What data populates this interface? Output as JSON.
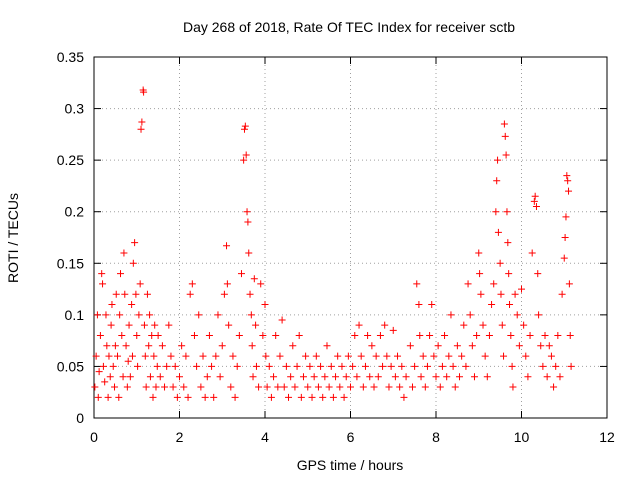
{
  "chart_data": {
    "type": "scatter",
    "title": "Day 268 of 2018, Rate Of TEC Index for receiver sctb",
    "xlabel": "GPS time / hours",
    "ylabel": "ROTI / TECUs",
    "xlim": [
      0,
      12
    ],
    "ylim": [
      0,
      0.35
    ],
    "xticks": [
      0,
      2,
      4,
      6,
      8,
      10,
      12
    ],
    "xtick_labels": [
      "0",
      "2",
      "4",
      "6",
      "8",
      "10",
      "12"
    ],
    "yticks": [
      0,
      0.05,
      0.1,
      0.15,
      0.2,
      0.25,
      0.3,
      0.35
    ],
    "ytick_labels": [
      "0",
      "0.05",
      "0.1",
      "0.15",
      "0.2",
      "0.25",
      "0.3",
      "0.35"
    ],
    "grid": true,
    "marker": "+",
    "color": "#ff0000",
    "series": [
      {
        "name": "ROTI",
        "points": [
          [
            0.02,
            0.03
          ],
          [
            0.05,
            0.06
          ],
          [
            0.08,
            0.1
          ],
          [
            0.1,
            0.02
          ],
          [
            0.12,
            0.045
          ],
          [
            0.15,
            0.08
          ],
          [
            0.18,
            0.14
          ],
          [
            0.2,
            0.13
          ],
          [
            0.22,
            0.05
          ],
          [
            0.25,
            0.035
          ],
          [
            0.28,
            0.1
          ],
          [
            0.3,
            0.07
          ],
          [
            0.33,
            0.02
          ],
          [
            0.35,
            0.06
          ],
          [
            0.38,
            0.04
          ],
          [
            0.4,
            0.09
          ],
          [
            0.42,
            0.11
          ],
          [
            0.45,
            0.05
          ],
          [
            0.48,
            0.03
          ],
          [
            0.5,
            0.07
          ],
          [
            0.52,
            0.12
          ],
          [
            0.55,
            0.06
          ],
          [
            0.58,
            0.02
          ],
          [
            0.6,
            0.1
          ],
          [
            0.62,
            0.14
          ],
          [
            0.65,
            0.08
          ],
          [
            0.68,
            0.04
          ],
          [
            0.7,
            0.16
          ],
          [
            0.72,
            0.12
          ],
          [
            0.75,
            0.07
          ],
          [
            0.78,
            0.03
          ],
          [
            0.8,
            0.055
          ],
          [
            0.82,
            0.09
          ],
          [
            0.85,
            0.04
          ],
          [
            0.88,
            0.11
          ],
          [
            0.9,
            0.06
          ],
          [
            0.92,
            0.15
          ],
          [
            0.95,
            0.17
          ],
          [
            0.98,
            0.12
          ],
          [
            1.0,
            0.08
          ],
          [
            1.02,
            0.05
          ],
          [
            1.05,
            0.1
          ],
          [
            1.08,
            0.13
          ],
          [
            1.1,
            0.28
          ],
          [
            1.12,
            0.287
          ],
          [
            1.15,
            0.318
          ],
          [
            1.16,
            0.316
          ],
          [
            1.18,
            0.09
          ],
          [
            1.2,
            0.06
          ],
          [
            1.22,
            0.03
          ],
          [
            1.25,
            0.12
          ],
          [
            1.28,
            0.07
          ],
          [
            1.3,
            0.1
          ],
          [
            1.32,
            0.04
          ],
          [
            1.35,
            0.08
          ],
          [
            1.38,
            0.02
          ],
          [
            1.4,
            0.06
          ],
          [
            1.42,
            0.09
          ],
          [
            1.45,
            0.03
          ],
          [
            1.48,
            0.05
          ],
          [
            1.5,
            0.08
          ],
          [
            1.55,
            0.04
          ],
          [
            1.6,
            0.07
          ],
          [
            1.65,
            0.03
          ],
          [
            1.7,
            0.05
          ],
          [
            1.75,
            0.09
          ],
          [
            1.8,
            0.06
          ],
          [
            1.85,
            0.03
          ],
          [
            1.9,
            0.05
          ],
          [
            1.95,
            0.02
          ],
          [
            2.0,
            0.04
          ],
          [
            2.05,
            0.07
          ],
          [
            2.1,
            0.03
          ],
          [
            2.15,
            0.06
          ],
          [
            2.2,
            0.02
          ],
          [
            2.25,
            0.12
          ],
          [
            2.3,
            0.13
          ],
          [
            2.35,
            0.08
          ],
          [
            2.4,
            0.05
          ],
          [
            2.45,
            0.1
          ],
          [
            2.5,
            0.03
          ],
          [
            2.55,
            0.06
          ],
          [
            2.6,
            0.02
          ],
          [
            2.65,
            0.04
          ],
          [
            2.7,
            0.08
          ],
          [
            2.75,
            0.05
          ],
          [
            2.8,
            0.02
          ],
          [
            2.85,
            0.06
          ],
          [
            2.9,
            0.1
          ],
          [
            2.95,
            0.04
          ],
          [
            3.0,
            0.07
          ],
          [
            3.05,
            0.12
          ],
          [
            3.1,
            0.167
          ],
          [
            3.12,
            0.13
          ],
          [
            3.15,
            0.09
          ],
          [
            3.2,
            0.03
          ],
          [
            3.25,
            0.06
          ],
          [
            3.3,
            0.02
          ],
          [
            3.35,
            0.05
          ],
          [
            3.4,
            0.08
          ],
          [
            3.45,
            0.14
          ],
          [
            3.5,
            0.25
          ],
          [
            3.52,
            0.28
          ],
          [
            3.54,
            0.283
          ],
          [
            3.56,
            0.255
          ],
          [
            3.58,
            0.2
          ],
          [
            3.6,
            0.19
          ],
          [
            3.62,
            0.16
          ],
          [
            3.65,
            0.12
          ],
          [
            3.68,
            0.1
          ],
          [
            3.7,
            0.07
          ],
          [
            3.72,
            0.04
          ],
          [
            3.75,
            0.135
          ],
          [
            3.78,
            0.09
          ],
          [
            3.8,
            0.05
          ],
          [
            3.85,
            0.03
          ],
          [
            3.9,
            0.13
          ],
          [
            3.95,
            0.08
          ],
          [
            4.0,
            0.11
          ],
          [
            4.02,
            0.06
          ],
          [
            4.05,
            0.03
          ],
          [
            4.1,
            0.05
          ],
          [
            4.15,
            0.02
          ],
          [
            4.2,
            0.04
          ],
          [
            4.25,
            0.08
          ],
          [
            4.3,
            0.03
          ],
          [
            4.35,
            0.06
          ],
          [
            4.4,
            0.095
          ],
          [
            4.45,
            0.03
          ],
          [
            4.5,
            0.05
          ],
          [
            4.55,
            0.02
          ],
          [
            4.6,
            0.04
          ],
          [
            4.65,
            0.07
          ],
          [
            4.7,
            0.03
          ],
          [
            4.75,
            0.05
          ],
          [
            4.8,
            0.08
          ],
          [
            4.85,
            0.02
          ],
          [
            4.9,
            0.04
          ],
          [
            4.95,
            0.06
          ],
          [
            5.0,
            0.03
          ],
          [
            5.05,
            0.05
          ],
          [
            5.1,
            0.02
          ],
          [
            5.15,
            0.04
          ],
          [
            5.2,
            0.06
          ],
          [
            5.25,
            0.03
          ],
          [
            5.3,
            0.05
          ],
          [
            5.35,
            0.02
          ],
          [
            5.4,
            0.04
          ],
          [
            5.45,
            0.07
          ],
          [
            5.5,
            0.03
          ],
          [
            5.55,
            0.05
          ],
          [
            5.6,
            0.02
          ],
          [
            5.65,
            0.04
          ],
          [
            5.7,
            0.06
          ],
          [
            5.75,
            0.03
          ],
          [
            5.8,
            0.05
          ],
          [
            5.85,
            0.02
          ],
          [
            5.9,
            0.04
          ],
          [
            5.95,
            0.06
          ],
          [
            6.0,
            0.03
          ],
          [
            6.05,
            0.05
          ],
          [
            6.1,
            0.08
          ],
          [
            6.15,
            0.04
          ],
          [
            6.2,
            0.09
          ],
          [
            6.25,
            0.06
          ],
          [
            6.3,
            0.03
          ],
          [
            6.35,
            0.05
          ],
          [
            6.4,
            0.08
          ],
          [
            6.45,
            0.04
          ],
          [
            6.5,
            0.07
          ],
          [
            6.55,
            0.03
          ],
          [
            6.6,
            0.06
          ],
          [
            6.65,
            0.04
          ],
          [
            6.7,
            0.08
          ],
          [
            6.75,
            0.05
          ],
          [
            6.8,
            0.09
          ],
          [
            6.85,
            0.06
          ],
          [
            6.9,
            0.03
          ],
          [
            6.95,
            0.05
          ],
          [
            7.0,
            0.085
          ],
          [
            7.05,
            0.04
          ],
          [
            7.1,
            0.06
          ],
          [
            7.15,
            0.03
          ],
          [
            7.2,
            0.05
          ],
          [
            7.25,
            0.02
          ],
          [
            7.3,
            0.04
          ],
          [
            7.4,
            0.07
          ],
          [
            7.45,
            0.03
          ],
          [
            7.5,
            0.05
          ],
          [
            7.55,
            0.13
          ],
          [
            7.6,
            0.11
          ],
          [
            7.62,
            0.08
          ],
          [
            7.65,
            0.04
          ],
          [
            7.7,
            0.06
          ],
          [
            7.75,
            0.03
          ],
          [
            7.8,
            0.05
          ],
          [
            7.85,
            0.08
          ],
          [
            7.9,
            0.11
          ],
          [
            7.95,
            0.06
          ],
          [
            8.0,
            0.04
          ],
          [
            8.05,
            0.07
          ],
          [
            8.1,
            0.03
          ],
          [
            8.15,
            0.05
          ],
          [
            8.2,
            0.08
          ],
          [
            8.25,
            0.04
          ],
          [
            8.3,
            0.06
          ],
          [
            8.35,
            0.1
          ],
          [
            8.4,
            0.05
          ],
          [
            8.45,
            0.03
          ],
          [
            8.5,
            0.07
          ],
          [
            8.55,
            0.04
          ],
          [
            8.6,
            0.06
          ],
          [
            8.65,
            0.09
          ],
          [
            8.7,
            0.05
          ],
          [
            8.75,
            0.13
          ],
          [
            8.8,
            0.1
          ],
          [
            8.85,
            0.07
          ],
          [
            8.9,
            0.04
          ],
          [
            8.95,
            0.08
          ],
          [
            9.0,
            0.16
          ],
          [
            9.02,
            0.14
          ],
          [
            9.05,
            0.12
          ],
          [
            9.1,
            0.09
          ],
          [
            9.15,
            0.06
          ],
          [
            9.2,
            0.04
          ],
          [
            9.25,
            0.08
          ],
          [
            9.3,
            0.11
          ],
          [
            9.35,
            0.13
          ],
          [
            9.4,
            0.2
          ],
          [
            9.42,
            0.23
          ],
          [
            9.44,
            0.25
          ],
          [
            9.46,
            0.18
          ],
          [
            9.5,
            0.15
          ],
          [
            9.52,
            0.12
          ],
          [
            9.55,
            0.09
          ],
          [
            9.58,
            0.06
          ],
          [
            9.6,
            0.285
          ],
          [
            9.62,
            0.273
          ],
          [
            9.64,
            0.255
          ],
          [
            9.66,
            0.2
          ],
          [
            9.68,
            0.17
          ],
          [
            9.7,
            0.14
          ],
          [
            9.72,
            0.11
          ],
          [
            9.75,
            0.08
          ],
          [
            9.78,
            0.05
          ],
          [
            9.8,
            0.03
          ],
          [
            9.85,
            0.12
          ],
          [
            9.9,
            0.1
          ],
          [
            9.95,
            0.07
          ],
          [
            10.0,
            0.125
          ],
          [
            10.05,
            0.09
          ],
          [
            10.1,
            0.06
          ],
          [
            10.15,
            0.04
          ],
          [
            10.2,
            0.08
          ],
          [
            10.25,
            0.16
          ],
          [
            10.3,
            0.21
          ],
          [
            10.32,
            0.215
          ],
          [
            10.35,
            0.205
          ],
          [
            10.38,
            0.14
          ],
          [
            10.4,
            0.1
          ],
          [
            10.45,
            0.07
          ],
          [
            10.5,
            0.05
          ],
          [
            10.55,
            0.08
          ],
          [
            10.6,
            0.04
          ],
          [
            10.65,
            0.07
          ],
          [
            10.7,
            0.06
          ],
          [
            10.75,
            0.03
          ],
          [
            10.8,
            0.05
          ],
          [
            10.85,
            0.08
          ],
          [
            10.9,
            0.04
          ],
          [
            10.95,
            0.12
          ],
          [
            11.0,
            0.155
          ],
          [
            11.02,
            0.175
          ],
          [
            11.04,
            0.195
          ],
          [
            11.06,
            0.235
          ],
          [
            11.08,
            0.23
          ],
          [
            11.1,
            0.22
          ],
          [
            11.12,
            0.13
          ],
          [
            11.14,
            0.08
          ],
          [
            11.16,
            0.05
          ]
        ]
      }
    ]
  }
}
